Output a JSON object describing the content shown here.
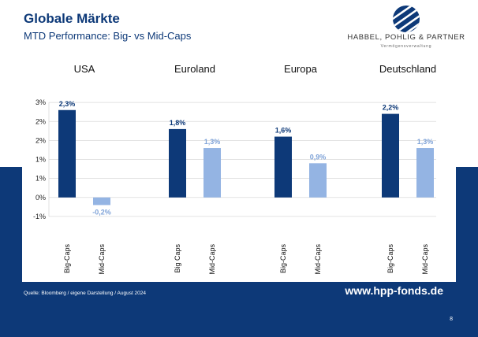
{
  "header": {
    "title": "Globale Märkte",
    "subtitle": "MTD Performance: Big- vs Mid-Caps"
  },
  "logo": {
    "name": "HABBEL, POHLIG & PARTNER",
    "tagline": "Vermögensverwaltung",
    "icon": "hpp-striped-sphere-logo"
  },
  "footer": {
    "source": "Quelle: Bloomberg / eigene Darstellung / August 2024",
    "website": "www.hpp-fonds.de",
    "page_number": "8"
  },
  "colors": {
    "big": "#0d3978",
    "mid": "#94b4e3",
    "band": "#0d3978"
  },
  "chart_data": {
    "type": "bar",
    "ylim": [
      -1.0,
      3.0
    ],
    "yticks": [
      {
        "value": -0.5,
        "label": "-1%"
      },
      {
        "value": 0.0,
        "label": "0%"
      },
      {
        "value": 0.5,
        "label": "1%"
      },
      {
        "value": 1.0,
        "label": "1%"
      },
      {
        "value": 1.5,
        "label": "2%"
      },
      {
        "value": 2.0,
        "label": "2%"
      },
      {
        "value": 2.5,
        "label": "3%"
      }
    ],
    "groups": [
      {
        "name": "USA",
        "bars": [
          {
            "category": "Big-Caps",
            "value": 2.3,
            "label": "2,3%",
            "series": "big"
          },
          {
            "category": "Mid-Caps",
            "value": -0.2,
            "label": "-0,2%",
            "series": "mid"
          }
        ]
      },
      {
        "name": "Euroland",
        "bars": [
          {
            "category": "Big Caps",
            "value": 1.8,
            "label": "1,8%",
            "series": "big"
          },
          {
            "category": "Mid-Caps",
            "value": 1.3,
            "label": "1,3%",
            "series": "mid"
          }
        ]
      },
      {
        "name": "Europa",
        "bars": [
          {
            "category": "Big-Caps",
            "value": 1.6,
            "label": "1,6%",
            "series": "big"
          },
          {
            "category": "Mid-Caps",
            "value": 0.9,
            "label": "0,9%",
            "series": "mid"
          }
        ]
      },
      {
        "name": "Deutschland",
        "bars": [
          {
            "category": "Big-Caps",
            "value": 2.2,
            "label": "2,2%",
            "series": "big"
          },
          {
            "category": "Mid-Caps",
            "value": 1.3,
            "label": "1,3%",
            "series": "mid"
          }
        ]
      }
    ]
  }
}
